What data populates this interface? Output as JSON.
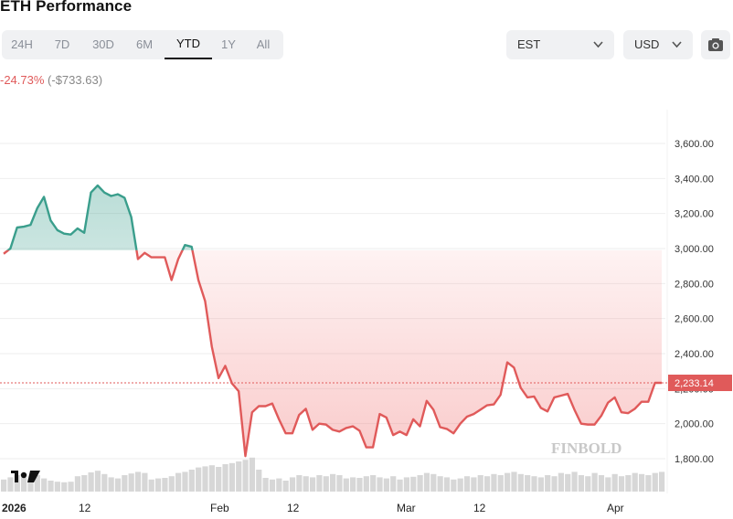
{
  "header": {
    "title": "ETH Performance"
  },
  "tabs": [
    {
      "label": "24H",
      "active": false
    },
    {
      "label": "7D",
      "active": false
    },
    {
      "label": "30D",
      "active": false
    },
    {
      "label": "6M",
      "active": false
    },
    {
      "label": "YTD",
      "active": true
    },
    {
      "label": "1Y",
      "active": false
    },
    {
      "label": "All",
      "active": false
    }
  ],
  "controls": {
    "timezone": "EST",
    "currency": "USD",
    "camera_icon": "camera-icon",
    "chevron_icon": "chevron-down-icon"
  },
  "performance": {
    "percent": "-24.73%",
    "absolute": "(-$733.63)"
  },
  "colors": {
    "up": "#3a9e8c",
    "down": "#e05a5a",
    "up_fill": "#3a9e8c",
    "down_fill": "#f06a6a",
    "volume": "#d7d7d7",
    "grid": "#eeeeee",
    "tag": "#e05a5a"
  },
  "chart_data": {
    "type": "area",
    "ylim": [
      1700,
      3750
    ],
    "y_ticks": [
      "1,800.00",
      "2,000.00",
      "2,200.00",
      "2,400.00",
      "2,600.00",
      "2,800.00",
      "3,000.00",
      "3,200.00",
      "3,400.00",
      "3,600.00"
    ],
    "baseline": 2990,
    "current_price_label": "2,233.14",
    "x_tick_labels": [
      "2026",
      "12",
      "Feb",
      "12",
      "Mar",
      "12",
      "Apr"
    ],
    "watermark": "FINBOLD",
    "series": [
      {
        "values": [
          2970,
          3000,
          3120,
          3125,
          3135,
          3230,
          3295,
          3160,
          3105,
          3085,
          3080,
          3115,
          3090,
          3320,
          3360,
          3320,
          3300,
          3310,
          3290,
          3180,
          2940,
          2975,
          2950,
          2950,
          2950,
          2820,
          2940,
          3020,
          3010,
          2820,
          2700,
          2440,
          2260,
          2330,
          2230,
          2185,
          1815,
          2065,
          2100,
          2100,
          2115,
          2025,
          1945,
          1945,
          2050,
          2085,
          1965,
          2000,
          1995,
          1965,
          1955,
          1975,
          1985,
          1960,
          1865,
          1865,
          2055,
          2035,
          1935,
          1955,
          1935,
          2025,
          1985,
          2130,
          2080,
          1980,
          1970,
          1945,
          2000,
          2040,
          2055,
          2080,
          2105,
          2110,
          2165,
          2350,
          2320,
          2205,
          2150,
          2155,
          2090,
          2070,
          2150,
          2160,
          2170,
          2080,
          2000,
          1995,
          1995,
          2045,
          2120,
          2150,
          2065,
          2060,
          2085,
          2125,
          2125,
          2233,
          2233
        ]
      }
    ],
    "volume": [
      0.22,
      0.26,
      0.3,
      0.26,
      0.22,
      0.3,
      0.24,
      0.2,
      0.18,
      0.17,
      0.18,
      0.28,
      0.3,
      0.35,
      0.38,
      0.32,
      0.26,
      0.24,
      0.3,
      0.33,
      0.36,
      0.34,
      0.22,
      0.24,
      0.25,
      0.28,
      0.34,
      0.36,
      0.4,
      0.44,
      0.46,
      0.48,
      0.45,
      0.5,
      0.52,
      0.55,
      0.58,
      0.62,
      0.4,
      0.25,
      0.22,
      0.24,
      0.2,
      0.26,
      0.3,
      0.28,
      0.26,
      0.3,
      0.28,
      0.32,
      0.3,
      0.24,
      0.26,
      0.25,
      0.28,
      0.3,
      0.26,
      0.24,
      0.28,
      0.22,
      0.26,
      0.27,
      0.3,
      0.34,
      0.32,
      0.28,
      0.26,
      0.22,
      0.24,
      0.28,
      0.26,
      0.3,
      0.28,
      0.32,
      0.3,
      0.34,
      0.36,
      0.32,
      0.3,
      0.28,
      0.26,
      0.3,
      0.28,
      0.34,
      0.32,
      0.36,
      0.3,
      0.28,
      0.34,
      0.3,
      0.26,
      0.32,
      0.28,
      0.3,
      0.34,
      0.32,
      0.3,
      0.34,
      0.36
    ]
  }
}
